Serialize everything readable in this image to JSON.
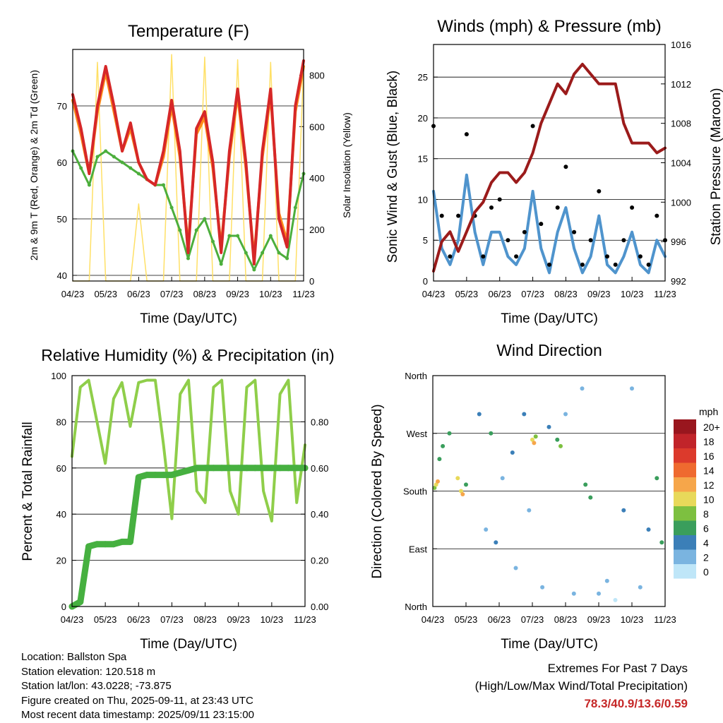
{
  "xticks": [
    "04/23",
    "05/23",
    "06/23",
    "07/23",
    "08/23",
    "09/23",
    "10/23",
    "11/23"
  ],
  "colors": {
    "t2m": "#d62728",
    "t9m": "#ff8c1a",
    "td": "#4cae3c",
    "solar": "#ffe066",
    "wind": "#4f94cd",
    "gust": "#000000",
    "pressure": "#9b1b1b",
    "rh": "#8fce4a",
    "precip": "#46b040"
  },
  "panels": {
    "temperature": {
      "title": "Temperature (F)",
      "xlabel": "Time (Day/UTC)",
      "ylabel_left": "2m & 9m T (Red, Orange) & 2m Td (Green)",
      "ylabel_right": "Solar Insolation (Yellow)",
      "yticks_left": [
        "40",
        "50",
        "60",
        "70"
      ],
      "yticks_right": [
        "0",
        "200",
        "400",
        "600",
        "800"
      ]
    },
    "winds": {
      "title": "Winds (mph) & Pressure (mb)",
      "xlabel": "Time (Day/UTC)",
      "ylabel_left": "Sonic Wind & Gust (Blue, Black)",
      "ylabel_right": "Station Pressure (Maroon)",
      "yticks_left": [
        "0",
        "5",
        "10",
        "15",
        "20",
        "25"
      ],
      "yticks_right": [
        "992",
        "996",
        "1000",
        "1004",
        "1008",
        "1012",
        "1016"
      ]
    },
    "humidity": {
      "title": "Relative Humidity (%) & Precipitation (in)",
      "xlabel": "Time (Day/UTC)",
      "ylabel_left": "Percent & Total Rainfall",
      "yticks_left": [
        "0",
        "20",
        "40",
        "60",
        "80",
        "100"
      ],
      "yticks_right": [
        "0.00",
        "0.20",
        "0.40",
        "0.60",
        "0.80"
      ]
    },
    "direction": {
      "title": "Wind Direction",
      "xlabel": "Time (Day/UTC)",
      "ylabel_left": "Direction (Colored By Speed)",
      "yticks_left": [
        "North",
        "East",
        "South",
        "West",
        "North"
      ],
      "legend_title": "mph",
      "legend_labels": [
        "20+",
        "18",
        "16",
        "14",
        "12",
        "10",
        "8",
        "6",
        "4",
        "2",
        "0"
      ],
      "legend_colors": [
        "#99161e",
        "#c1242a",
        "#dc3a2c",
        "#ef6a2f",
        "#f6a64a",
        "#e8d95a",
        "#7dc040",
        "#3a9e5c",
        "#3b7fb8",
        "#7ab4e0",
        "#bfe6f8"
      ]
    }
  },
  "info": {
    "location": "Location: Ballston Spa",
    "elevation": "Station elevation: 120.518 m",
    "latlon": "Station lat/lon: 43.0228; -73.875",
    "created": "Figure created on Thu, 2025-09-11, at 23:43 UTC",
    "recent": "Most recent data timestamp: 2025/09/11 23:15:00"
  },
  "extremes": {
    "line1": "Extremes For Past 7 Days",
    "line2": "(High/Low/Max Wind/Total Precipitation)",
    "values": "78.3/40.9/13.6/0.59"
  },
  "chart_data": [
    {
      "type": "line",
      "title": "Temperature (F)",
      "xlabel": "Time (Day/UTC)",
      "ylabel": "2m & 9m T (Red, Orange) & 2m Td (Green)",
      "y2label": "Solar Insolation (Yellow)",
      "ylim": [
        39,
        80
      ],
      "y2lim": [
        0,
        900
      ],
      "x": [
        0,
        0.25,
        0.5,
        0.75,
        1,
        1.25,
        1.5,
        1.75,
        2,
        2.25,
        2.5,
        2.75,
        3,
        3.25,
        3.5,
        3.75,
        4,
        4.25,
        4.5,
        4.75,
        5,
        5.25,
        5.5,
        5.75,
        6,
        6.25,
        6.5,
        6.75,
        7
      ],
      "series": [
        {
          "name": "2m T",
          "axis": "left",
          "values": [
            72,
            66,
            58,
            70,
            77,
            70,
            62,
            67,
            60,
            57,
            56,
            62,
            71,
            62,
            44,
            66,
            69,
            60,
            44,
            62,
            73,
            60,
            42,
            62,
            73,
            50,
            45,
            70,
            78
          ]
        },
        {
          "name": "9m T",
          "axis": "left",
          "values": [
            71,
            65,
            58,
            69,
            76,
            69,
            62,
            66,
            60,
            57,
            56,
            61,
            70,
            61,
            45,
            65,
            68,
            59,
            45,
            61,
            72,
            59,
            43,
            61,
            72,
            51,
            46,
            69,
            77
          ]
        },
        {
          "name": "2m Td",
          "axis": "left",
          "values": [
            62,
            59,
            56,
            61,
            62,
            61,
            60,
            59,
            58,
            57,
            56,
            56,
            52,
            48,
            43,
            48,
            50,
            46,
            42,
            47,
            47,
            44,
            41,
            44,
            47,
            44,
            43,
            52,
            58
          ]
        },
        {
          "name": "Solar Insolation",
          "axis": "right",
          "values": [
            0,
            0,
            0,
            850,
            0,
            0,
            0,
            0,
            300,
            0,
            0,
            0,
            880,
            0,
            0,
            0,
            870,
            0,
            0,
            0,
            860,
            0,
            0,
            0,
            850,
            0,
            0,
            0,
            840
          ]
        }
      ]
    },
    {
      "type": "line",
      "title": "Winds (mph) & Pressure (mb)",
      "xlabel": "Time (Day/UTC)",
      "ylabel": "Sonic Wind & Gust (Blue, Black)",
      "y2label": "Station Pressure (Maroon)",
      "ylim": [
        0,
        29
      ],
      "y2lim": [
        992,
        1016
      ],
      "x": [
        0,
        0.25,
        0.5,
        0.75,
        1,
        1.25,
        1.5,
        1.75,
        2,
        2.25,
        2.5,
        2.75,
        3,
        3.25,
        3.5,
        3.75,
        4,
        4.25,
        4.5,
        4.75,
        5,
        5.25,
        5.5,
        5.75,
        6,
        6.25,
        6.5,
        6.75,
        7
      ],
      "series": [
        {
          "name": "Sonic Wind",
          "axis": "left",
          "values": [
            11,
            4,
            2,
            5,
            13,
            6,
            2,
            6,
            6,
            3,
            2,
            4,
            11,
            4,
            1,
            6,
            9,
            4,
            1,
            3,
            8,
            2,
            1,
            3,
            6,
            2,
            1,
            5,
            3
          ]
        },
        {
          "name": "Gust",
          "axis": "left",
          "values": [
            19,
            8,
            3,
            8,
            18,
            8,
            3,
            9,
            10,
            5,
            3,
            6,
            19,
            7,
            2,
            9,
            14,
            6,
            2,
            5,
            11,
            3,
            2,
            5,
            9,
            3,
            2,
            8,
            5
          ]
        },
        {
          "name": "Station Pressure",
          "axis": "right",
          "values": [
            993,
            996,
            997,
            995,
            997,
            999,
            1000,
            1002,
            1003,
            1003,
            1002,
            1003,
            1005,
            1008,
            1010,
            1012,
            1011,
            1013,
            1014,
            1013,
            1012,
            1012,
            1012,
            1008,
            1006,
            1006,
            1006,
            1005,
            1005.5
          ]
        }
      ]
    },
    {
      "type": "line",
      "title": "Relative Humidity (%) & Precipitation (in)",
      "xlabel": "Time (Day/UTC)",
      "ylabel": "Percent & Total Rainfall",
      "ylim": [
        0,
        100
      ],
      "y2lim": [
        0,
        1
      ],
      "x": [
        0,
        0.25,
        0.5,
        0.75,
        1,
        1.25,
        1.5,
        1.75,
        2,
        2.25,
        2.5,
        2.75,
        3,
        3.25,
        3.5,
        3.75,
        4,
        4.25,
        4.5,
        4.75,
        5,
        5.25,
        5.5,
        5.75,
        6,
        6.25,
        6.5,
        6.75,
        7
      ],
      "series": [
        {
          "name": "Relative Humidity",
          "axis": "left",
          "values": [
            65,
            95,
            98,
            80,
            62,
            90,
            97,
            78,
            97,
            98,
            98,
            70,
            38,
            92,
            98,
            50,
            45,
            95,
            98,
            50,
            40,
            95,
            98,
            50,
            37,
            92,
            98,
            45,
            70
          ]
        },
        {
          "name": "Total Precipitation",
          "axis": "right",
          "values": [
            0,
            0.02,
            0.26,
            0.27,
            0.27,
            0.27,
            0.28,
            0.28,
            0.56,
            0.57,
            0.57,
            0.57,
            0.57,
            0.58,
            0.59,
            0.6,
            0.6,
            0.6,
            0.6,
            0.6,
            0.6,
            0.6,
            0.6,
            0.6,
            0.6,
            0.6,
            0.6,
            0.6,
            0.6
          ]
        }
      ]
    },
    {
      "type": "scatter",
      "title": "Wind Direction",
      "xlabel": "Time (Day/UTC)",
      "ylabel": "Direction (Colored By Speed)",
      "ylim": [
        0,
        360
      ],
      "legend": "right",
      "colorbar_title": "mph",
      "series": [
        {
          "name": "wind direction",
          "points": [
            [
              0.05,
              185,
              8
            ],
            [
              0.1,
              190,
              10
            ],
            [
              0.15,
              195,
              12
            ],
            [
              0.2,
              230,
              5
            ],
            [
              0.3,
              250,
              6
            ],
            [
              0.5,
              270,
              6
            ],
            [
              0.75,
              200,
              10
            ],
            [
              0.85,
              180,
              9
            ],
            [
              0.9,
              175,
              12
            ],
            [
              1.0,
              190,
              6
            ],
            [
              1.4,
              300,
              3
            ],
            [
              1.6,
              120,
              2
            ],
            [
              1.75,
              270,
              6
            ],
            [
              1.9,
              100,
              3
            ],
            [
              2.1,
              200,
              2
            ],
            [
              2.4,
              240,
              3
            ],
            [
              2.5,
              60,
              1
            ],
            [
              2.75,
              300,
              4
            ],
            [
              2.9,
              150,
              2
            ],
            [
              3.0,
              260,
              10
            ],
            [
              3.05,
              255,
              12
            ],
            [
              3.1,
              265,
              8
            ],
            [
              3.3,
              30,
              1
            ],
            [
              3.5,
              280,
              3
            ],
            [
              3.75,
              260,
              6
            ],
            [
              3.85,
              250,
              8
            ],
            [
              4.0,
              300,
              2
            ],
            [
              4.25,
              20,
              1
            ],
            [
              4.5,
              340,
              1
            ],
            [
              4.6,
              190,
              6
            ],
            [
              4.75,
              170,
              5
            ],
            [
              5.0,
              20,
              1
            ],
            [
              5.25,
              40,
              1
            ],
            [
              5.5,
              10,
              0
            ],
            [
              5.75,
              150,
              3
            ],
            [
              6.0,
              340,
              1
            ],
            [
              6.25,
              30,
              1
            ],
            [
              6.5,
              120,
              4
            ],
            [
              6.75,
              200,
              6
            ],
            [
              6.9,
              100,
              5
            ]
          ]
        }
      ]
    }
  ]
}
